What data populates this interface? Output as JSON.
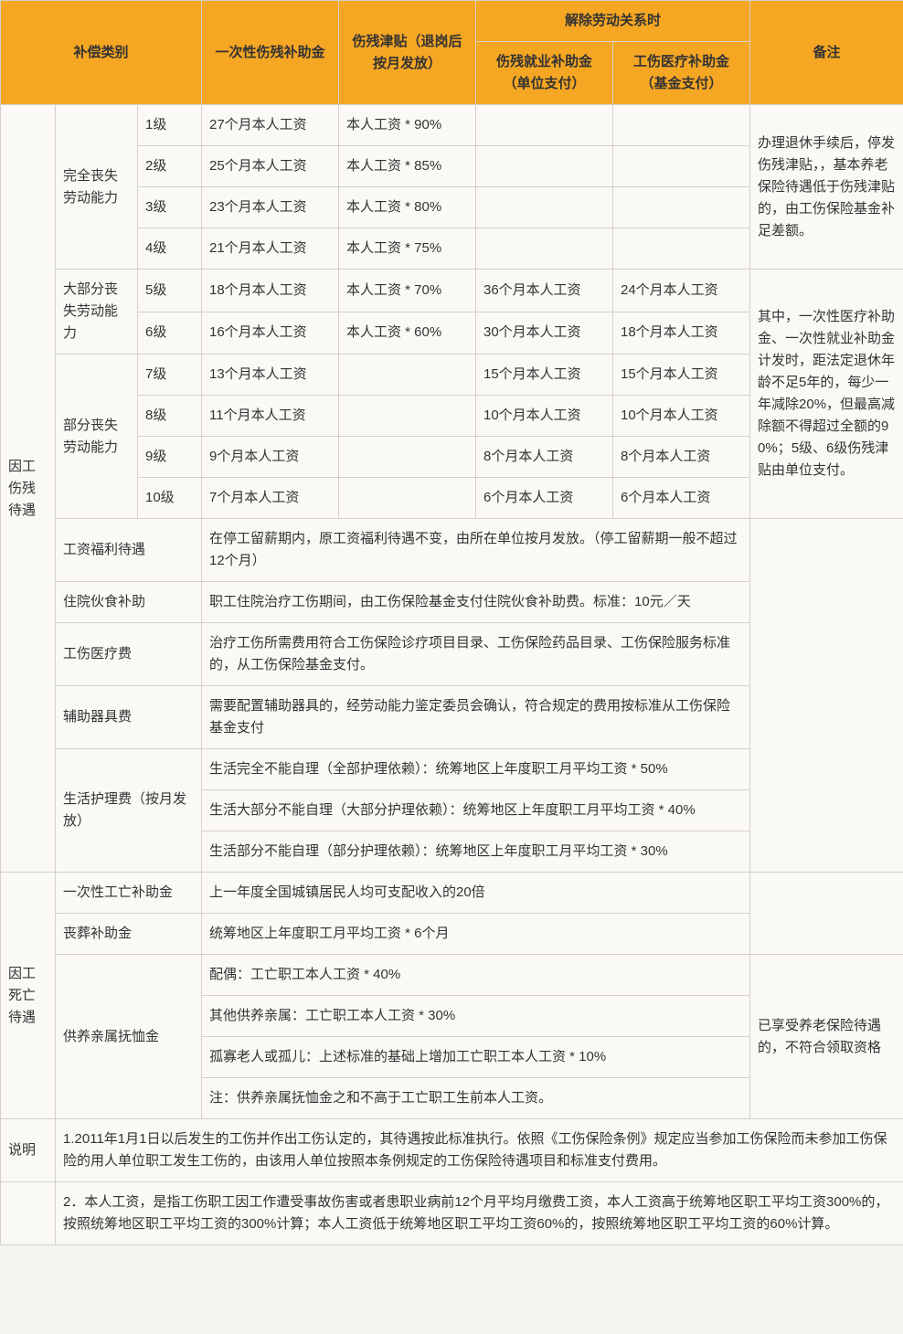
{
  "header": {
    "cat": "补偿类别",
    "lump": "一次性伤残补助金",
    "allowance": "伤残津贴（退岗后按月发放）",
    "termination": "解除劳动关系时",
    "emp_pay": "伤残就业补助金（单位支付）",
    "med_pay": "工伤医疗补助金（基金支付）",
    "remark": "备注"
  },
  "colors": {
    "header_bg": "#f5a623",
    "border": "#d4d0c8",
    "bg": "#faf9f5",
    "text": "#333333"
  },
  "injury": {
    "title": "因工伤残待遇",
    "full_loss": {
      "label": "完全丧失劳动能力",
      "rows": [
        {
          "lvl": "1级",
          "lump": "27个月本人工资",
          "allow": "本人工资 * 90%"
        },
        {
          "lvl": "2级",
          "lump": "25个月本人工资",
          "allow": "本人工资 * 85%"
        },
        {
          "lvl": "3级",
          "lump": "23个月本人工资",
          "allow": "本人工资 * 80%"
        },
        {
          "lvl": "4级",
          "lump": "21个月本人工资",
          "allow": "本人工资 * 75%"
        }
      ],
      "remark": "办理退休手续后，停发伤残津贴，，基本养老保险待遇低于伤残津贴的，由工伤保险基金补足差额。"
    },
    "most_loss": {
      "label": "大部分丧失劳动能力",
      "rows": [
        {
          "lvl": "5级",
          "lump": "18个月本人工资",
          "allow": "本人工资 * 70%",
          "emp": "36个月本人工资",
          "med": "24个月本人工资"
        },
        {
          "lvl": "6级",
          "lump": "16个月本人工资",
          "allow": "本人工资 * 60%",
          "emp": "30个月本人工资",
          "med": "18个月本人工资"
        }
      ]
    },
    "partial_loss": {
      "label": "部分丧失劳动能力",
      "rows": [
        {
          "lvl": "7级",
          "lump": "13个月本人工资",
          "emp": "15个月本人工资",
          "med": "15个月本人工资"
        },
        {
          "lvl": "8级",
          "lump": "11个月本人工资",
          "emp": "10个月本人工资",
          "med": "10个月本人工资"
        },
        {
          "lvl": "9级",
          "lump": "9个月本人工资",
          "emp": "8个月本人工资",
          "med": "8个月本人工资"
        },
        {
          "lvl": "10级",
          "lump": "7个月本人工资",
          "emp": "6个月本人工资",
          "med": "6个月本人工资"
        }
      ],
      "remark": "其中，一次性医疗补助金、一次性就业补助金计发时，距法定退休年龄不足5年的，每少一年减除20%，但最高减除额不得超过全额的90%；5级、6级伤残津贴由单位支付。"
    },
    "salary_welfare": {
      "label": "工资福利待遇",
      "desc": "在停工留薪期内，原工资福利待遇不变，由所在单位按月发放。（停工留薪期一般不超过12个月）"
    },
    "hospital_meal": {
      "label": "住院伙食补助",
      "desc": "职工住院治疗工伤期间，由工伤保险基金支付住院伙食补助费。标准：10元／天"
    },
    "medical_fee": {
      "label": "工伤医疗费",
      "desc": "治疗工伤所需费用符合工伤保险诊疗项目目录、工伤保险药品目录、工伤保险服务标准的，从工伤保险基金支付。"
    },
    "device_fee": {
      "label": "辅助器具费",
      "desc": "需要配置辅助器具的，经劳动能力鉴定委员会确认，符合规定的费用按标准从工伤保险基金支付"
    },
    "nursing": {
      "label": "生活护理费（按月发放）",
      "r1": "生活完全不能自理（全部护理依赖）：统筹地区上年度职工月平均工资 * 50%",
      "r2": "生活大部分不能自理（大部分护理依赖）：统筹地区上年度职工月平均工资 * 40%",
      "r3": "生活部分不能自理（部分护理依赖）：统筹地区上年度职工月平均工资 * 30%"
    }
  },
  "death": {
    "title": "因工死亡待遇",
    "one_time": {
      "label": "一次性工亡补助金",
      "desc": "上一年度全国城镇居民人均可支配收入的20倍"
    },
    "funeral": {
      "label": "丧葬补助金",
      "desc": "统筹地区上年度职工月平均工资 * 6个月"
    },
    "dependents": {
      "label": "供养亲属抚恤金",
      "spouse": "配偶：工亡职工本人工资 * 40%",
      "other": "其他供养亲属：工亡职工本人工资 * 30%",
      "orphan": "孤寡老人或孤儿：上述标准的基础上增加工亡职工本人工资 * 10%",
      "note": "注：供养亲属抚恤金之和不高于工亡职工生前本人工资。",
      "remark": "已享受养老保险待遇的，不符合领取资格"
    }
  },
  "notes": {
    "label": "说明",
    "n1": "1.2011年1月1日以后发生的工伤并作出工伤认定的，其待遇按此标准执行。依照《工伤保险条例》规定应当参加工伤保险而未参加工伤保险的用人单位职工发生工伤的，由该用人单位按照本条例规定的工伤保险待遇项目和标准支付费用。",
    "n2": "2．本人工资，是指工伤职工因工作遭受事故伤害或者患职业病前12个月平均月缴费工资，本人工资高于统筹地区职工平均工资300%的，按照统筹地区职工平均工资的300%计算；本人工资低于统筹地区职工平均工资60%的，按照统筹地区职工平均工资的60%计算。"
  }
}
